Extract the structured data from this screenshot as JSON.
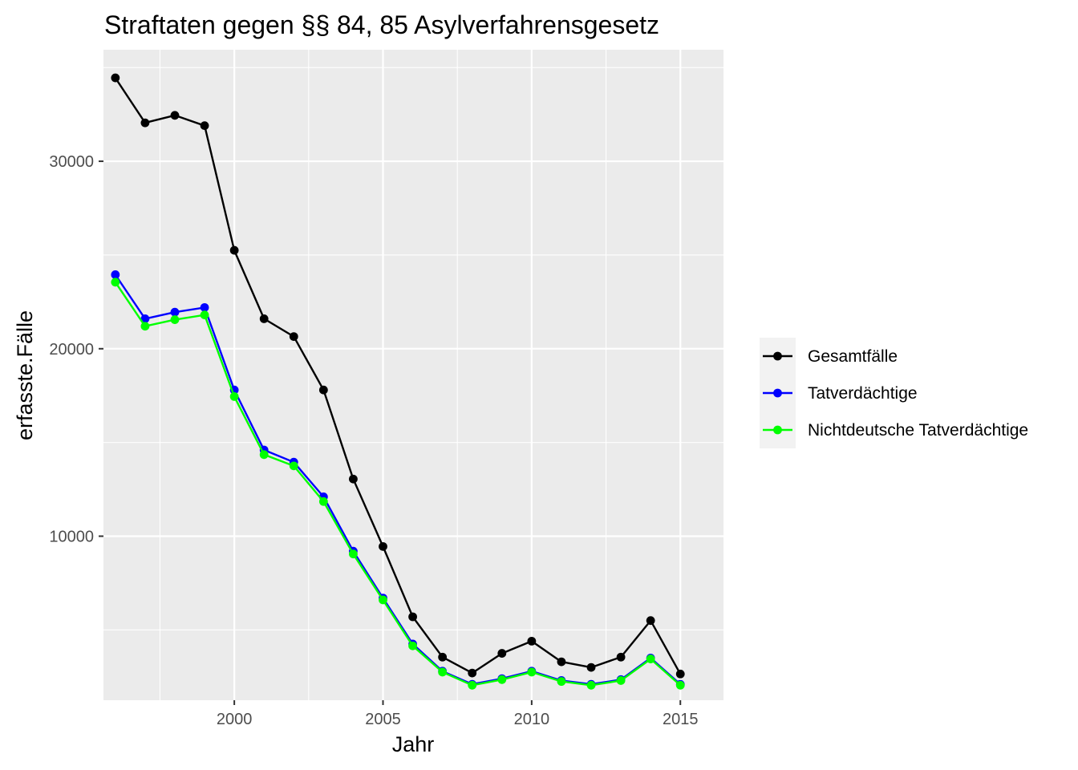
{
  "chart_data": {
    "type": "line",
    "title": "Straftaten gegen §§ 84, 85 Asylverfahrensgesetz",
    "xlabel": "Jahr",
    "ylabel": "erfasste.Fälle",
    "x": [
      1996,
      1997,
      1998,
      1999,
      2000,
      2001,
      2002,
      2003,
      2004,
      2005,
      2006,
      2007,
      2008,
      2009,
      2010,
      2011,
      2012,
      2013,
      2014,
      2015
    ],
    "xlim": [
      1995.6,
      2016.45
    ],
    "ylim": [
      1250,
      35950
    ],
    "x_ticks": [
      2000,
      2005,
      2010,
      2015
    ],
    "x_minor_ticks": [
      1997.5,
      2002.5,
      2007.5,
      2012.5
    ],
    "y_ticks": [
      10000,
      20000,
      30000
    ],
    "y_minor_ticks": [
      5000,
      15000,
      25000,
      35000
    ],
    "grid": true,
    "legend_position": "right",
    "series": [
      {
        "name": "Gesamtfälle",
        "color": "#000000",
        "values": [
          34450,
          32050,
          32450,
          31900,
          25250,
          21600,
          20650,
          17800,
          13050,
          9450,
          5700,
          3550,
          2700,
          3750,
          4400,
          3300,
          3000,
          3550,
          5500,
          2650
        ]
      },
      {
        "name": "Tatverdächtige",
        "color": "#0000ff",
        "values": [
          23950,
          21600,
          21950,
          22200,
          17800,
          14600,
          13950,
          12100,
          9200,
          6700,
          4250,
          2800,
          2100,
          2400,
          2800,
          2300,
          2100,
          2350,
          3500,
          2100
        ]
      },
      {
        "name": "Nichtdeutsche Tatverdächtige",
        "color": "#00ff00",
        "values": [
          23550,
          21200,
          21550,
          21800,
          17450,
          14350,
          13750,
          11850,
          9050,
          6600,
          4150,
          2750,
          2050,
          2350,
          2750,
          2250,
          2050,
          2300,
          3450,
          2050
        ]
      }
    ]
  }
}
